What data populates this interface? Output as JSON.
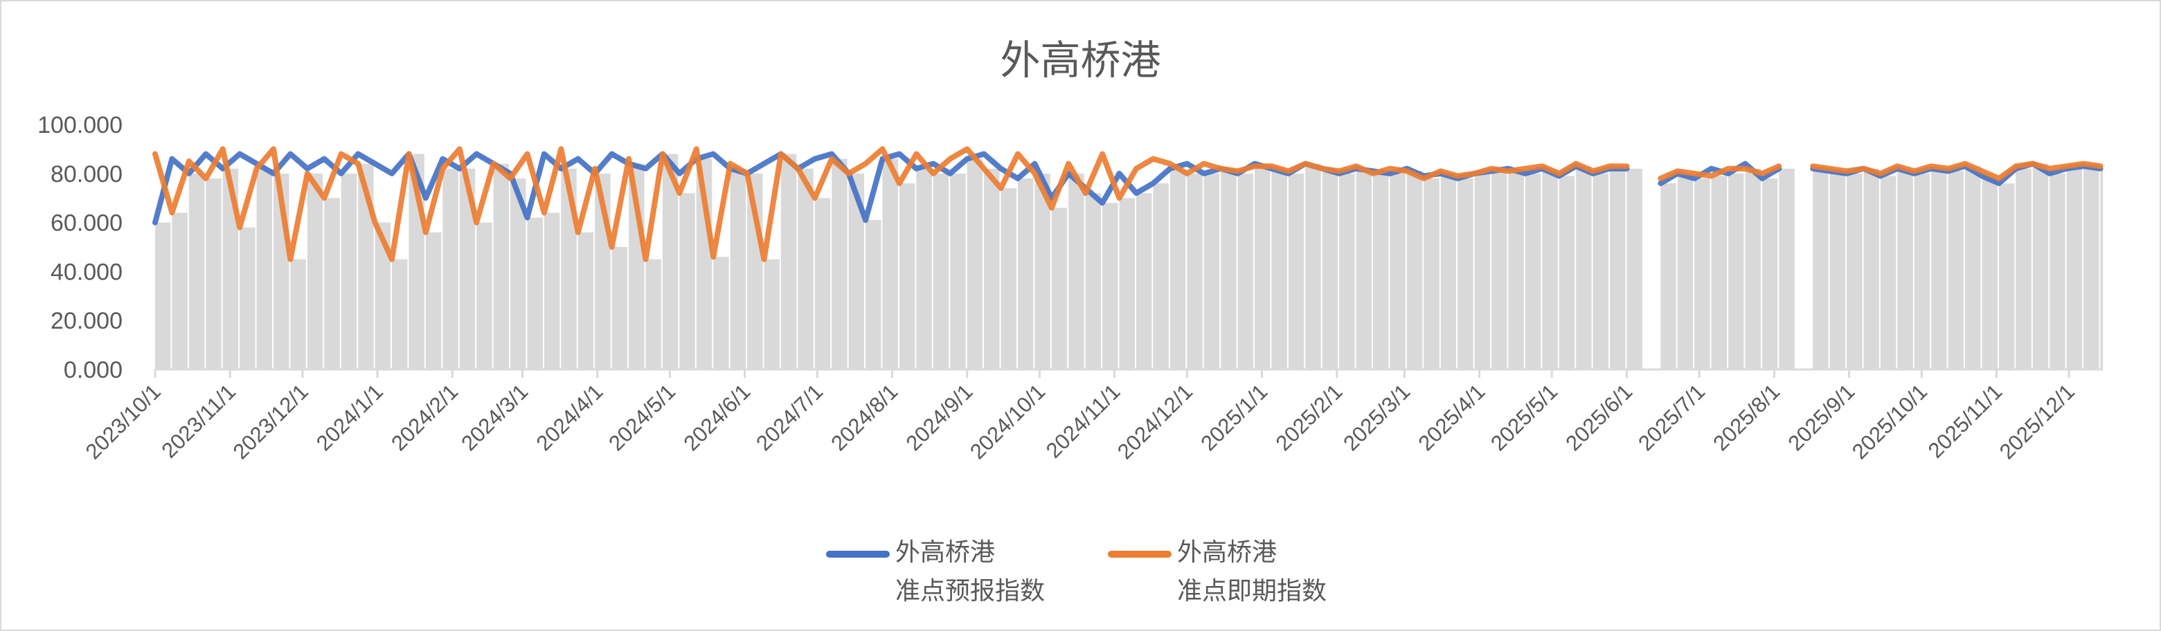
{
  "chart_data": {
    "type": "line",
    "title": "外高桥港",
    "ylim": [
      0,
      100
    ],
    "y_ticks": [
      "0.000",
      "20.000",
      "40.000",
      "60.000",
      "80.000",
      "100.000"
    ],
    "x_tick_labels": [
      "2023/10/1",
      "2023/11/1",
      "2023/12/1",
      "2024/1/1",
      "2024/2/1",
      "2024/3/1",
      "2024/4/1",
      "2024/5/1",
      "2024/6/1",
      "2024/7/1",
      "2024/8/1",
      "2024/9/1",
      "2024/10/1",
      "2024/11/1",
      "2024/12/1",
      "2025/1/1",
      "2025/2/1",
      "2025/3/1",
      "2025/4/1",
      "2025/5/1",
      "2025/6/1",
      "2025/7/1",
      "2025/8/1",
      "2025/9/1",
      "2025/10/1",
      "2025/11/1",
      "2025/12/1"
    ],
    "xlim": [
      "2023-10-01",
      "2025-12-15"
    ],
    "grid": false,
    "legend_position": "bottom",
    "background_bars_color": "#d9d9d9",
    "x": [
      "2023-10-01",
      "2023-10-08",
      "2023-10-15",
      "2023-10-22",
      "2023-10-29",
      "2023-11-05",
      "2023-11-12",
      "2023-11-19",
      "2023-11-26",
      "2023-12-03",
      "2023-12-10",
      "2023-12-17",
      "2023-12-24",
      "2023-12-31",
      "2024-01-07",
      "2024-01-14",
      "2024-01-21",
      "2024-01-28",
      "2024-02-04",
      "2024-02-11",
      "2024-02-18",
      "2024-02-25",
      "2024-03-03",
      "2024-03-10",
      "2024-03-17",
      "2024-03-24",
      "2024-03-31",
      "2024-04-07",
      "2024-04-14",
      "2024-04-21",
      "2024-04-28",
      "2024-05-05",
      "2024-05-12",
      "2024-05-19",
      "2024-05-26",
      "2024-06-02",
      "2024-06-09",
      "2024-06-16",
      "2024-06-23",
      "2024-06-30",
      "2024-07-07",
      "2024-07-14",
      "2024-07-21",
      "2024-07-28",
      "2024-08-04",
      "2024-08-11",
      "2024-08-18",
      "2024-08-25",
      "2024-09-01",
      "2024-09-08",
      "2024-09-15",
      "2024-09-22",
      "2024-09-29",
      "2024-10-06",
      "2024-10-13",
      "2024-10-20",
      "2024-10-27",
      "2024-11-03",
      "2024-11-10",
      "2024-11-17",
      "2024-11-24",
      "2024-12-01",
      "2024-12-08",
      "2024-12-15",
      "2024-12-22",
      "2024-12-29",
      "2025-01-05",
      "2025-01-12",
      "2025-01-19",
      "2025-01-26",
      "2025-02-02",
      "2025-02-09",
      "2025-02-16",
      "2025-02-23",
      "2025-03-02",
      "2025-03-09",
      "2025-03-16",
      "2025-03-23",
      "2025-03-30",
      "2025-04-06",
      "2025-04-13",
      "2025-04-20",
      "2025-04-27",
      "2025-05-04",
      "2025-05-11",
      "2025-05-18",
      "2025-05-25",
      "2025-06-01",
      "2025-06-08",
      "2025-06-15",
      "2025-06-22",
      "2025-06-29",
      "2025-07-06",
      "2025-07-13",
      "2025-07-20",
      "2025-07-27",
      "2025-08-03",
      "2025-08-10",
      "2025-08-17",
      "2025-08-24",
      "2025-08-31",
      "2025-09-07",
      "2025-09-14",
      "2025-09-21",
      "2025-09-28",
      "2025-10-05",
      "2025-10-12",
      "2025-10-19",
      "2025-10-26",
      "2025-11-02",
      "2025-11-09",
      "2025-11-16",
      "2025-11-23",
      "2025-11-30",
      "2025-12-07",
      "2025-12-14"
    ],
    "series": [
      {
        "name_line1": "外高桥港",
        "name_line2": "准点预报指数",
        "color": "#4472c4",
        "values": [
          60,
          86,
          80,
          88,
          82,
          88,
          84,
          80,
          88,
          82,
          86,
          80,
          88,
          84,
          80,
          88,
          70,
          86,
          82,
          88,
          84,
          80,
          62,
          88,
          82,
          86,
          80,
          88,
          84,
          82,
          88,
          80,
          86,
          88,
          82,
          80,
          84,
          88,
          82,
          86,
          88,
          80,
          61,
          86,
          88,
          82,
          84,
          80,
          86,
          88,
          82,
          78,
          84,
          70,
          80,
          74,
          68,
          80,
          72,
          76,
          82,
          84,
          80,
          82,
          80,
          84,
          82,
          80,
          84,
          82,
          80,
          82,
          81,
          80,
          82,
          79,
          80,
          78,
          80,
          81,
          82,
          80,
          82,
          79,
          83,
          80,
          82,
          82,
          null,
          76,
          80,
          78,
          82,
          80,
          84,
          78,
          82,
          null,
          82,
          81,
          80,
          82,
          79,
          82,
          80,
          82,
          81,
          83,
          79,
          76,
          82,
          84,
          80,
          82,
          83,
          82
        ]
      },
      {
        "name_line1": "外高桥港",
        "name_line2": "准点即期指数",
        "color": "#ed7d31",
        "values": [
          88,
          64,
          85,
          78,
          90,
          58,
          82,
          90,
          45,
          80,
          70,
          88,
          84,
          60,
          45,
          88,
          56,
          82,
          90,
          60,
          84,
          78,
          88,
          64,
          90,
          56,
          82,
          50,
          86,
          45,
          88,
          72,
          90,
          46,
          84,
          80,
          45,
          88,
          82,
          70,
          86,
          80,
          84,
          90,
          76,
          88,
          80,
          86,
          90,
          82,
          74,
          88,
          80,
          66,
          84,
          72,
          88,
          70,
          82,
          86,
          84,
          80,
          84,
          82,
          81,
          83,
          83,
          81,
          84,
          82,
          81,
          83,
          80,
          82,
          81,
          78,
          81,
          79,
          80,
          82,
          81,
          82,
          83,
          80,
          84,
          81,
          83,
          83,
          null,
          78,
          81,
          80,
          79,
          82,
          82,
          80,
          83,
          null,
          83,
          82,
          81,
          82,
          80,
          83,
          81,
          83,
          82,
          84,
          81,
          78,
          83,
          84,
          82,
          83,
          84,
          83
        ]
      }
    ]
  }
}
